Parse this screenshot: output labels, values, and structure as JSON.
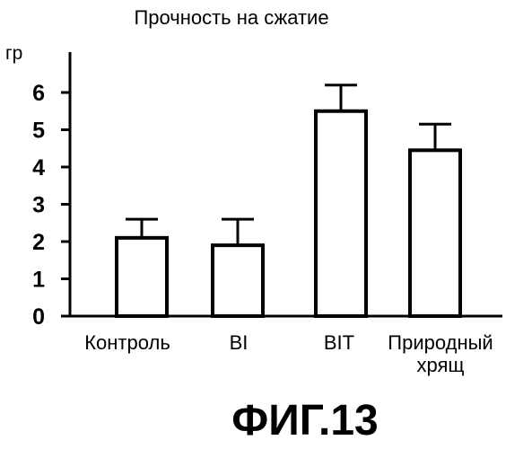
{
  "chart_data": {
    "type": "bar",
    "title": "Прочность на сжатие",
    "ylabel": "гр",
    "ylim": [
      0,
      6
    ],
    "yticks": [
      "0",
      "1",
      "2",
      "3",
      "4",
      "5",
      "6"
    ],
    "categories": [
      [
        "Контроль"
      ],
      [
        "BI"
      ],
      [
        "BIT"
      ],
      [
        "Природный",
        "хрящ"
      ]
    ],
    "values": [
      2.1,
      1.9,
      5.5,
      4.45
    ],
    "error_upper": [
      0.5,
      0.7,
      0.7,
      0.7
    ],
    "figure_label": "ФИГ.13"
  }
}
